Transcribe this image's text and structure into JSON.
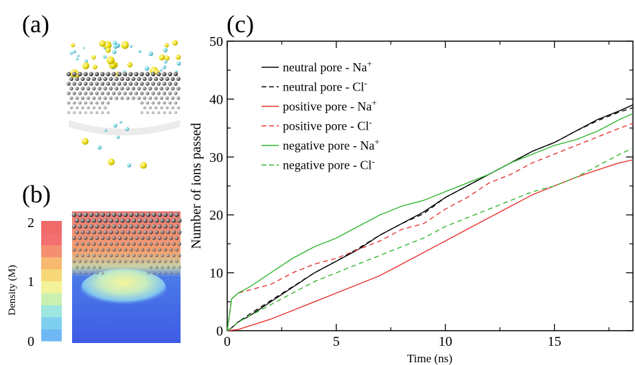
{
  "panel_labels": {
    "a": "(a)",
    "b": "(b)",
    "c": "(c)"
  },
  "colorbar": {
    "label": "Density (M)",
    "ticks": [
      "0",
      "1",
      "2"
    ],
    "stops": [
      "#6fb8f5",
      "#7fd0ee",
      "#9ee6e0",
      "#c9f0b0",
      "#f2f29a",
      "#f7d878",
      "#f7b870",
      "#f58f72",
      "#f27070",
      "#f06a6a"
    ]
  },
  "chart_data": {
    "type": "line",
    "xlabel": "Time (ns)",
    "ylabel": "Number of ions passed",
    "xlim": [
      0,
      18.6
    ],
    "ylim": [
      0,
      50
    ],
    "xticks": [
      "0",
      "5",
      "10",
      "15"
    ],
    "yticks": [
      "0",
      "10",
      "20",
      "30",
      "40",
      "50"
    ],
    "legend_position": "top-left",
    "series": [
      {
        "label_main": "neutral pore - Na",
        "label_sup": "+",
        "color": "#000000",
        "dash": "solid",
        "x": [
          0,
          0.2,
          0.5,
          1,
          2,
          3,
          4,
          5,
          6,
          7,
          8,
          9,
          10,
          11,
          12,
          13,
          14,
          15,
          16,
          17,
          18,
          18.6
        ],
        "y": [
          0,
          0.5,
          1.5,
          2.5,
          5,
          7.5,
          10,
          12,
          14,
          16.5,
          18.5,
          20.5,
          23,
          25,
          27,
          29,
          31,
          32.5,
          34.5,
          36.5,
          38,
          39
        ]
      },
      {
        "label_main": "neutral pore - Cl",
        "label_sup": "-",
        "color": "#000000",
        "dash": "dashed",
        "x": [
          0,
          0.2,
          0.5,
          1,
          2,
          3,
          4,
          5,
          6,
          7,
          8,
          9,
          10,
          11,
          12,
          13,
          14,
          15,
          16,
          17,
          18,
          18.6
        ],
        "y": [
          0,
          0.5,
          1.5,
          2.8,
          5.2,
          7.6,
          10,
          12,
          14.2,
          16.5,
          18.5,
          20.2,
          23,
          25,
          27,
          29,
          31,
          32.5,
          34.5,
          36.3,
          37.8,
          38.5
        ]
      },
      {
        "label_main": "positive pore - Na",
        "label_sup": "+",
        "color": "#e8322c",
        "dash": "solid",
        "x": [
          0,
          0.5,
          1,
          2,
          3,
          4,
          5,
          6,
          7,
          8,
          9,
          10,
          11,
          12,
          13,
          14,
          15,
          16,
          17,
          18,
          18.6
        ],
        "y": [
          0,
          0.2,
          0.8,
          2,
          3.5,
          5,
          6.5,
          8,
          9.5,
          11.5,
          13.5,
          15.5,
          17.5,
          19.5,
          21.5,
          23.5,
          25,
          26.5,
          27.8,
          29,
          29.5
        ]
      },
      {
        "label_main": "positive pore - Cl",
        "label_sup": "-",
        "color": "#e8322c",
        "dash": "dashed",
        "x": [
          0,
          0.2,
          0.5,
          1,
          2,
          3,
          4,
          5,
          6,
          7,
          8,
          9,
          10,
          11,
          12,
          13,
          14,
          15,
          16,
          17,
          18,
          18.6
        ],
        "y": [
          0,
          5.5,
          6.5,
          7,
          8,
          10,
          11.5,
          12.5,
          14,
          15.5,
          17.5,
          18.5,
          21,
          23,
          25.5,
          27,
          29,
          30.5,
          32,
          33.5,
          35,
          35.8
        ]
      },
      {
        "label_main": "negative pore - Na",
        "label_sup": "+",
        "color": "#2fb52f",
        "dash": "solid",
        "x": [
          0,
          0.2,
          0.5,
          1,
          2,
          3,
          4,
          5,
          6,
          7,
          8,
          9,
          10,
          11,
          12,
          13,
          14,
          15,
          16,
          17,
          18,
          18.6
        ],
        "y": [
          0,
          5.5,
          6.5,
          7.5,
          10,
          12.5,
          14.5,
          16,
          18,
          20,
          21.5,
          22.5,
          24,
          25.5,
          27,
          29,
          30.5,
          32,
          33,
          34.5,
          36.5,
          37.5
        ]
      },
      {
        "label_main": "negative pore - Cl",
        "label_sup": "-",
        "color": "#2fb52f",
        "dash": "dashed",
        "x": [
          0,
          0.2,
          0.5,
          1,
          2,
          3,
          4,
          5,
          6,
          7,
          8,
          9,
          10,
          11,
          12,
          13,
          14,
          15,
          16,
          17,
          18,
          18.6
        ],
        "y": [
          0,
          0.5,
          1.5,
          2.5,
          4.5,
          6.5,
          8.5,
          10,
          11.5,
          13,
          14.5,
          16,
          18,
          19.5,
          21,
          22.5,
          24,
          25,
          26.5,
          28.5,
          30.5,
          31.5
        ]
      }
    ]
  }
}
